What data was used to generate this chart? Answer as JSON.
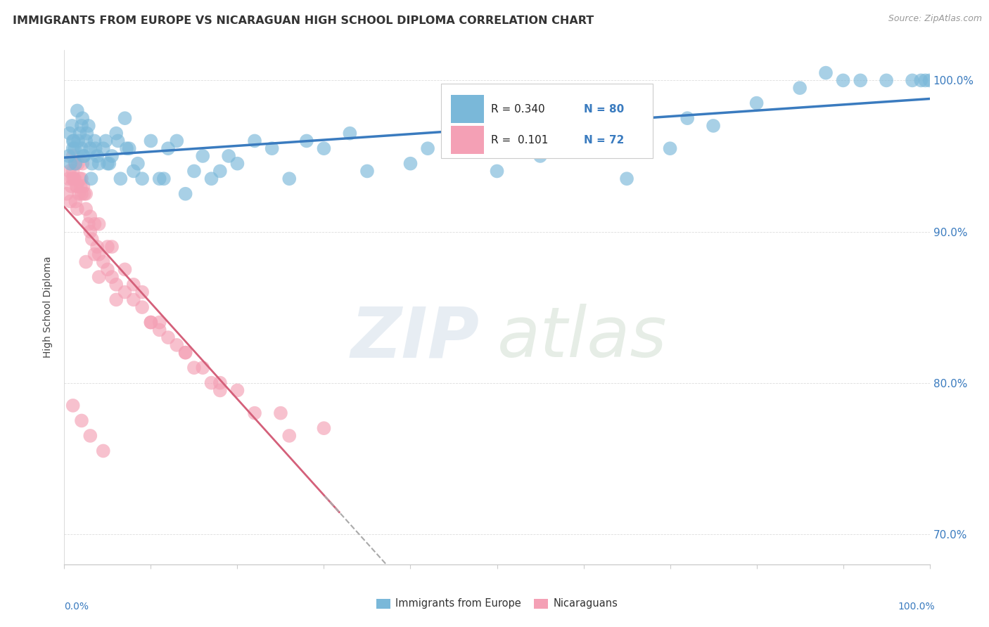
{
  "title": "IMMIGRANTS FROM EUROPE VS NICARAGUAN HIGH SCHOOL DIPLOMA CORRELATION CHART",
  "source": "Source: ZipAtlas.com",
  "ylabel": "High School Diploma",
  "legend_bottom": [
    "Immigrants from Europe",
    "Nicaraguans"
  ],
  "r_blue": 0.34,
  "n_blue": 80,
  "r_pink": 0.101,
  "n_pink": 72,
  "blue_color": "#7ab8d9",
  "pink_color": "#f4a0b5",
  "trend_blue": "#3a7bbf",
  "trend_pink": "#d4607a",
  "watermark": "ZIPatlas",
  "blue_x": [
    1.2,
    1.5,
    1.8,
    2.0,
    2.2,
    2.5,
    2.8,
    3.0,
    3.2,
    3.5,
    3.8,
    4.0,
    4.5,
    5.0,
    5.5,
    6.0,
    6.5,
    7.0,
    7.5,
    8.0,
    9.0,
    10.0,
    11.0,
    12.0,
    13.0,
    14.0,
    15.0,
    16.0,
    17.0,
    18.0,
    19.0,
    20.0,
    22.0,
    24.0,
    26.0,
    28.0,
    30.0,
    35.0,
    40.0,
    42.0,
    45.0,
    50.0,
    55.0,
    60.0,
    65.0,
    70.0,
    75.0,
    80.0,
    85.0,
    90.0,
    95.0,
    98.0,
    99.0,
    99.5,
    100.0,
    0.5,
    0.6,
    0.7,
    0.9,
    1.0,
    1.1,
    1.3,
    1.6,
    2.1,
    2.3,
    2.6,
    3.1,
    3.6,
    4.8,
    5.2,
    6.2,
    7.2,
    8.5,
    11.5,
    33.0,
    72.0,
    88.0,
    92.0,
    1.0,
    2.0
  ],
  "blue_y": [
    95.5,
    98.0,
    96.5,
    97.0,
    95.0,
    96.0,
    97.0,
    95.5,
    94.5,
    96.0,
    95.0,
    94.5,
    95.5,
    94.5,
    95.0,
    96.5,
    93.5,
    97.5,
    95.5,
    94.0,
    93.5,
    96.0,
    93.5,
    95.5,
    96.0,
    92.5,
    94.0,
    95.0,
    93.5,
    94.0,
    95.0,
    94.5,
    96.0,
    95.5,
    93.5,
    96.0,
    95.5,
    94.0,
    94.5,
    95.5,
    96.5,
    94.0,
    95.0,
    96.0,
    93.5,
    95.5,
    97.0,
    98.5,
    99.5,
    100.0,
    100.0,
    100.0,
    100.0,
    100.0,
    100.0,
    95.0,
    96.5,
    94.5,
    97.0,
    95.5,
    96.0,
    94.5,
    96.0,
    97.5,
    95.0,
    96.5,
    93.5,
    95.5,
    96.0,
    94.5,
    96.0,
    95.5,
    94.5,
    93.5,
    96.5,
    97.5,
    100.5,
    100.0,
    96.0,
    95.5
  ],
  "pink_x": [
    0.3,
    0.5,
    0.6,
    0.7,
    0.8,
    0.9,
    1.0,
    1.1,
    1.2,
    1.3,
    1.4,
    1.5,
    1.6,
    1.7,
    1.8,
    1.9,
    2.0,
    2.1,
    2.2,
    2.3,
    2.5,
    2.8,
    3.0,
    3.2,
    3.5,
    3.8,
    4.0,
    4.5,
    5.0,
    5.5,
    6.0,
    7.0,
    8.0,
    9.0,
    10.0,
    11.0,
    12.0,
    14.0,
    16.0,
    18.0,
    20.0,
    25.0,
    30.0,
    1.0,
    1.5,
    2.5,
    3.0,
    4.0,
    5.5,
    7.0,
    9.0,
    11.0,
    13.0,
    15.0,
    18.0,
    22.0,
    26.0,
    1.2,
    2.0,
    3.5,
    5.0,
    8.0,
    10.0,
    14.0,
    17.0,
    2.5,
    4.0,
    6.0,
    1.0,
    2.0,
    3.0,
    4.5
  ],
  "pink_y": [
    92.5,
    93.5,
    94.0,
    92.0,
    93.0,
    93.5,
    95.0,
    93.5,
    94.5,
    92.0,
    93.0,
    91.5,
    94.5,
    92.5,
    93.5,
    93.0,
    93.5,
    94.5,
    93.0,
    92.5,
    91.5,
    90.5,
    90.0,
    89.5,
    88.5,
    89.0,
    88.5,
    88.0,
    87.5,
    87.0,
    86.5,
    86.0,
    85.5,
    85.0,
    84.0,
    83.5,
    83.0,
    82.0,
    81.0,
    80.0,
    79.5,
    78.0,
    77.0,
    94.0,
    93.0,
    92.5,
    91.0,
    90.5,
    89.0,
    87.5,
    86.0,
    84.0,
    82.5,
    81.0,
    79.5,
    78.0,
    76.5,
    93.5,
    92.5,
    90.5,
    89.0,
    86.5,
    84.0,
    82.0,
    80.0,
    88.0,
    87.0,
    85.5,
    78.5,
    77.5,
    76.5,
    75.5
  ]
}
